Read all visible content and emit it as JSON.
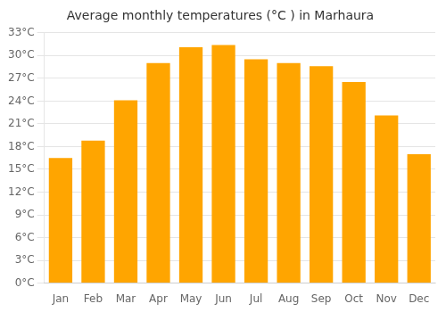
{
  "chart_data": {
    "type": "bar",
    "title": "Average monthly temperatures (°C ) in Marhaura",
    "categories": [
      "Jan",
      "Feb",
      "Mar",
      "Apr",
      "May",
      "Jun",
      "Jul",
      "Aug",
      "Sep",
      "Oct",
      "Nov",
      "Dec"
    ],
    "values": [
      16.5,
      18.8,
      24.1,
      29.0,
      31.1,
      31.4,
      29.5,
      29.0,
      28.6,
      26.5,
      22.1,
      17.0
    ],
    "color": "#FFA500",
    "ylim": [
      0,
      33
    ],
    "yticks": [
      {
        "value": 0,
        "label": "0°C"
      },
      {
        "value": 3,
        "label": "3°C"
      },
      {
        "value": 6,
        "label": "6°C"
      },
      {
        "value": 9,
        "label": "9°C"
      },
      {
        "value": 12,
        "label": "12°C"
      },
      {
        "value": 15,
        "label": "15°C"
      },
      {
        "value": 18,
        "label": "18°C"
      },
      {
        "value": 21,
        "label": "21°C"
      },
      {
        "value": 24,
        "label": "24°C"
      },
      {
        "value": 27,
        "label": "27°C"
      },
      {
        "value": 30,
        "label": "30°C"
      },
      {
        "value": 33,
        "label": "33°C"
      }
    ],
    "grid": true
  }
}
